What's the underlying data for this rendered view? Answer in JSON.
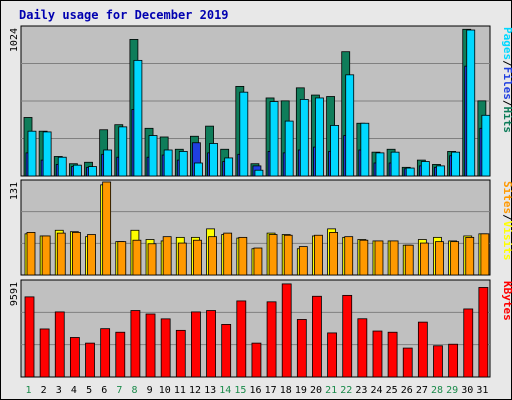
{
  "title": "Daily usage for December 2019",
  "colors": {
    "background": "#e8e8e8",
    "plot_bg": "#c0c0c0",
    "title": "#0000b0",
    "hits": "#0f7d5a",
    "files": "#1f3fe0",
    "pages": "#00d8ff",
    "visits": "#ffff00",
    "sites": "#ff9900",
    "kbytes": "#ff0000",
    "weekend_tick": "#1a8a4a",
    "weekday_tick": "#000000"
  },
  "chart_data": [
    {
      "type": "bar",
      "panel": "hits-files-pages",
      "right_label": [
        "Pages",
        "/",
        "Files",
        "/",
        "Hits"
      ],
      "ymax_label": "1024",
      "ylim": [
        0,
        1024
      ],
      "categories": [
        "1",
        "2",
        "3",
        "4",
        "5",
        "6",
        "7",
        "8",
        "9",
        "10",
        "11",
        "12",
        "13",
        "14",
        "15",
        "16",
        "17",
        "18",
        "19",
        "20",
        "21",
        "22",
        "23",
        "24",
        "25",
        "26",
        "27",
        "28",
        "29",
        "30",
        "31"
      ],
      "series": [
        {
          "name": "Hits",
          "values": [
            405,
            310,
            135,
            85,
            95,
            320,
            355,
            945,
            330,
            270,
            185,
            275,
            345,
            185,
            620,
            85,
            540,
            520,
            610,
            560,
            550,
            860,
            365,
            165,
            185,
            60,
            110,
            80,
            170,
            1015,
            520
          ]
        },
        {
          "name": "Files",
          "values": [
            160,
            110,
            80,
            65,
            60,
            150,
            130,
            460,
            130,
            145,
            110,
            230,
            160,
            100,
            150,
            70,
            170,
            160,
            180,
            200,
            170,
            280,
            180,
            90,
            90,
            50,
            70,
            60,
            140,
            760,
            330
          ]
        },
        {
          "name": "Pages",
          "values": [
            310,
            305,
            130,
            75,
            65,
            180,
            340,
            800,
            280,
            180,
            170,
            90,
            225,
            125,
            580,
            40,
            515,
            380,
            530,
            540,
            350,
            700,
            365,
            160,
            165,
            55,
            100,
            70,
            165,
            1010,
            420
          ]
        }
      ]
    },
    {
      "type": "bar",
      "panel": "visits-sites",
      "right_label": [
        "Sites",
        "/",
        "Visits"
      ],
      "ymax_label": "131",
      "ylim": [
        0,
        131
      ],
      "categories": [
        "1",
        "2",
        "3",
        "4",
        "5",
        "6",
        "7",
        "8",
        "9",
        "10",
        "11",
        "12",
        "13",
        "14",
        "15",
        "16",
        "17",
        "18",
        "19",
        "20",
        "21",
        "22",
        "23",
        "24",
        "25",
        "26",
        "27",
        "28",
        "29",
        "30",
        "31"
      ],
      "series": [
        {
          "name": "Visits",
          "values": [
            58,
            55,
            63,
            61,
            54,
            127,
            47,
            63,
            50,
            48,
            53,
            53,
            65,
            57,
            52,
            37,
            59,
            57,
            37,
            55,
            65,
            53,
            50,
            48,
            48,
            42,
            50,
            53,
            48,
            55,
            58
          ]
        },
        {
          "name": "Sites",
          "values": [
            60,
            55,
            59,
            60,
            57,
            131,
            47,
            49,
            44,
            54,
            45,
            49,
            54,
            59,
            53,
            38,
            57,
            56,
            40,
            56,
            60,
            54,
            49,
            48,
            48,
            42,
            45,
            47,
            47,
            53,
            58
          ]
        }
      ]
    },
    {
      "type": "bar",
      "panel": "kbytes",
      "right_label": [
        "KBytes"
      ],
      "ymax_label": "9591",
      "ylim": [
        0,
        9591
      ],
      "categories": [
        "1",
        "2",
        "3",
        "4",
        "5",
        "6",
        "7",
        "8",
        "9",
        "10",
        "11",
        "12",
        "13",
        "14",
        "15",
        "16",
        "17",
        "18",
        "19",
        "20",
        "21",
        "22",
        "23",
        "24",
        "25",
        "26",
        "27",
        "28",
        "29",
        "30",
        "31"
      ],
      "series": [
        {
          "name": "KBytes",
          "values": [
            8090,
            4850,
            6570,
            3990,
            3420,
            4880,
            4520,
            6710,
            6360,
            5870,
            4710,
            6570,
            6710,
            5310,
            7680,
            3420,
            7590,
            9400,
            5810,
            8150,
            4450,
            8240,
            5880,
            4640,
            4520,
            2920,
            5540,
            3150,
            3310,
            6870,
            9040
          ]
        }
      ]
    }
  ],
  "x_ticks": [
    {
      "label": "1",
      "weekend": true
    },
    {
      "label": "2",
      "weekend": false
    },
    {
      "label": "3",
      "weekend": false
    },
    {
      "label": "4",
      "weekend": false
    },
    {
      "label": "5",
      "weekend": false
    },
    {
      "label": "6",
      "weekend": false
    },
    {
      "label": "7",
      "weekend": true
    },
    {
      "label": "8",
      "weekend": true
    },
    {
      "label": "9",
      "weekend": false
    },
    {
      "label": "10",
      "weekend": false
    },
    {
      "label": "11",
      "weekend": false
    },
    {
      "label": "12",
      "weekend": false
    },
    {
      "label": "13",
      "weekend": false
    },
    {
      "label": "14",
      "weekend": true
    },
    {
      "label": "15",
      "weekend": true
    },
    {
      "label": "16",
      "weekend": false
    },
    {
      "label": "17",
      "weekend": false
    },
    {
      "label": "18",
      "weekend": false
    },
    {
      "label": "19",
      "weekend": false
    },
    {
      "label": "20",
      "weekend": false
    },
    {
      "label": "21",
      "weekend": true
    },
    {
      "label": "22",
      "weekend": true
    },
    {
      "label": "23",
      "weekend": false
    },
    {
      "label": "24",
      "weekend": false
    },
    {
      "label": "25",
      "weekend": false
    },
    {
      "label": "26",
      "weekend": false
    },
    {
      "label": "27",
      "weekend": false
    },
    {
      "label": "28",
      "weekend": true
    },
    {
      "label": "29",
      "weekend": true
    },
    {
      "label": "30",
      "weekend": false
    },
    {
      "label": "31",
      "weekend": false
    }
  ]
}
